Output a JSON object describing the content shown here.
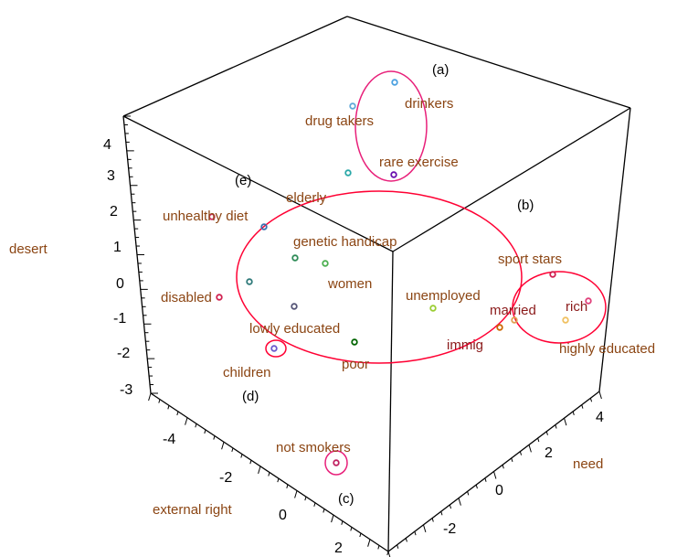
{
  "chart_data": {
    "type": "scatter",
    "dimensions": "3d",
    "axes": {
      "x": {
        "label": "external right",
        "ticks": [
          "-4",
          "-2",
          "0",
          "2"
        ]
      },
      "y": {
        "label": "need",
        "ticks": [
          "4",
          "2",
          "0",
          "-2"
        ]
      },
      "z": {
        "label": "desert",
        "ticks": [
          "4",
          "3",
          "2",
          "1",
          "0",
          "-1",
          "-2",
          "-3"
        ]
      }
    },
    "points": [
      {
        "name": "drinkers",
        "color": "#4aa0e0",
        "label_color": "#8b4513"
      },
      {
        "name": "drug takers",
        "color": "#5fa8d8",
        "label_color": "#8b4513"
      },
      {
        "name": "rare exercise",
        "color": "#6a0dad",
        "label_color": "#8b4513"
      },
      {
        "name": "elderly",
        "color": "#2aa8a8",
        "label_color": "#8b4513"
      },
      {
        "name": "unhealthy diet",
        "color": "#d03060",
        "label_color": "#8b4513"
      },
      {
        "name": "genetic handicap",
        "color": "#2e8b57",
        "label_color": "#8b4513"
      },
      {
        "name": "women",
        "color": "#4caf50",
        "label_color": "#8b4513"
      },
      {
        "name": "disabled",
        "color": "#d02050",
        "label_color": "#8b4513"
      },
      {
        "name": "lowly educated",
        "color": "#555577",
        "label_color": "#8b4513"
      },
      {
        "name": "children",
        "color": "#6a5acd",
        "label_color": "#8b4513"
      },
      {
        "name": "poor",
        "color": "#006400",
        "label_color": "#8b4513"
      },
      {
        "name": "unemployed",
        "color": "#9acd32",
        "label_color": "#8b4513"
      },
      {
        "name": "immig",
        "color": "#cc6600",
        "label_color": "#8b1a1a"
      },
      {
        "name": "married",
        "color": "#e0a050",
        "label_color": "#8b1a1a"
      },
      {
        "name": "sport stars",
        "color": "#d02050",
        "label_color": "#8b4513"
      },
      {
        "name": "rich",
        "color": "#e0407a",
        "label_color": "#8b1a1a"
      },
      {
        "name": "highly educated",
        "color": "#f0c060",
        "label_color": "#8b4513"
      },
      {
        "name": "not smokers",
        "color": "#c02060",
        "label_color": "#8b4513"
      }
    ],
    "groups": [
      "(a)",
      "(b)",
      "(c)",
      "(d)",
      "(e)"
    ],
    "colors": {
      "cube": "#000000",
      "circle": "#ff0033",
      "text": "#8b4513"
    }
  }
}
